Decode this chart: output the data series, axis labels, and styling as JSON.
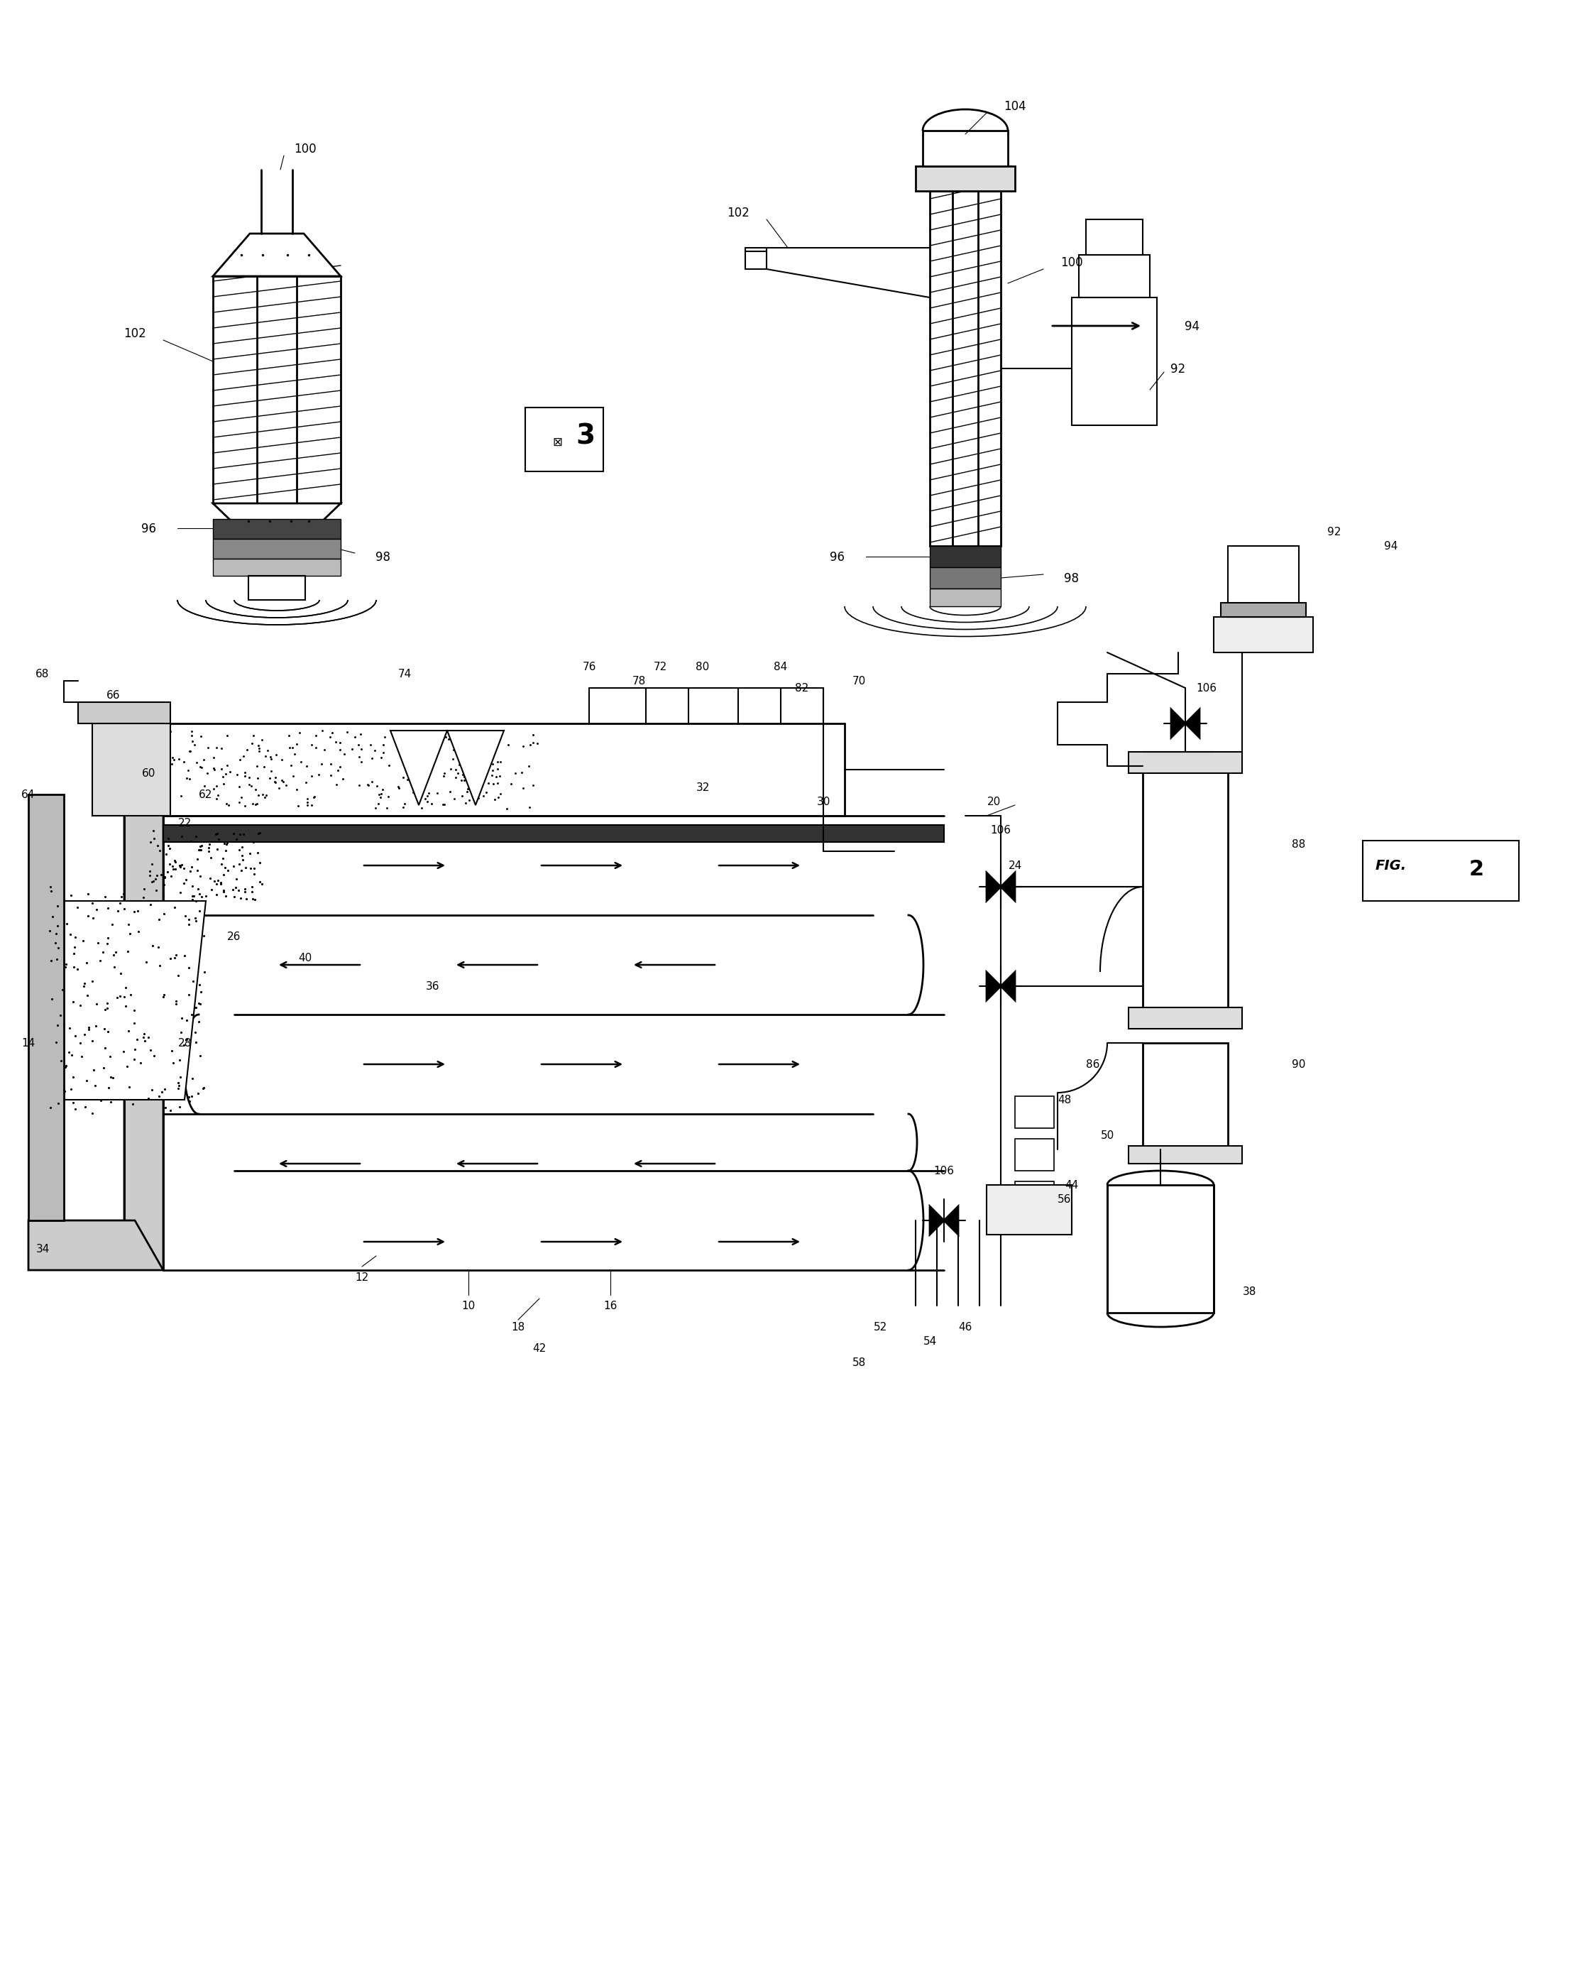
{
  "bg": "#ffffff",
  "lc": "#000000",
  "fw": 21.92,
  "fh": 27.6,
  "dpi": 100,
  "note": "All coordinates in data-units 0..21.92 x 0..27.60, origin bottom-left"
}
